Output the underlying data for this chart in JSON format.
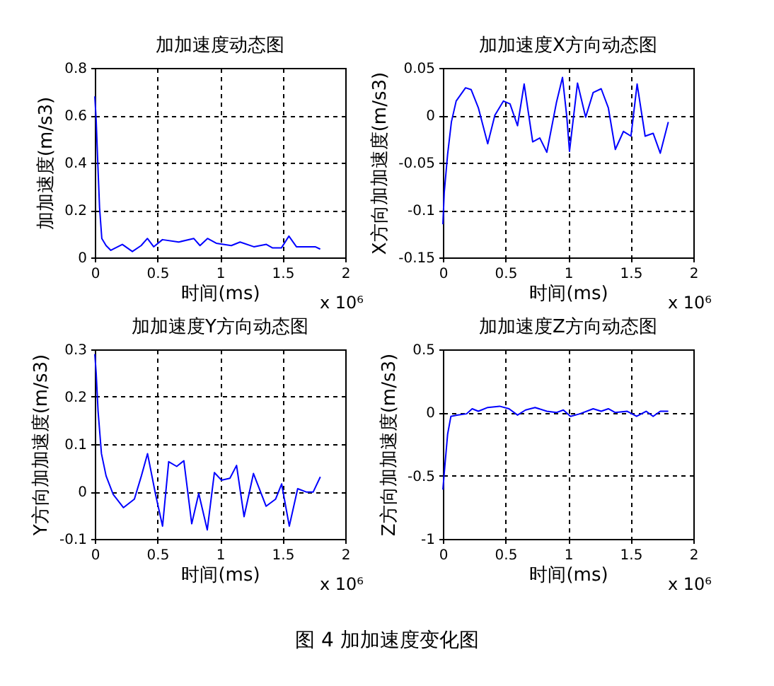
{
  "chart_data": [
    {
      "type": "line",
      "title": "加加速度动态图",
      "xlabel": "时间(ms)",
      "ylabel": "加加速度(m/s3)",
      "xlim": [
        0,
        2
      ],
      "xticks": [
        0,
        0.5,
        1,
        1.5,
        2
      ],
      "ylim": [
        0,
        0.8
      ],
      "yticks": [
        0,
        0.2,
        0.4,
        0.6,
        0.8
      ],
      "grid": true,
      "marker": "none",
      "line_style": "solid",
      "annotations": [
        "x 10⁶"
      ],
      "series": [
        {
          "color": "#0000ff",
          "x": [
            0,
            0.011,
            0.023,
            0.038,
            0.056,
            0.09,
            0.128,
            0.22,
            0.3,
            0.37,
            0.42,
            0.47,
            0.54,
            0.67,
            0.79,
            0.84,
            0.9,
            0.97,
            1.09,
            1.16,
            1.27,
            1.37,
            1.42,
            1.49,
            1.55,
            1.61,
            1.76,
            1.8
          ],
          "values": [
            0.68,
            0.58,
            0.41,
            0.21,
            0.08,
            0.05,
            0.03,
            0.055,
            0.025,
            0.05,
            0.08,
            0.045,
            0.075,
            0.065,
            0.08,
            0.05,
            0.08,
            0.06,
            0.05,
            0.065,
            0.045,
            0.055,
            0.04,
            0.04,
            0.09,
            0.045,
            0.045,
            0.035
          ]
        }
      ]
    },
    {
      "type": "line",
      "title": "加加速度X方向动态图",
      "xlabel": "时间(ms)",
      "ylabel": "X方向加加速度(m/s3)",
      "xlim": [
        0,
        2
      ],
      "xticks": [
        0,
        0.5,
        1,
        1.5,
        2
      ],
      "ylim": [
        -0.15,
        0.05
      ],
      "yticks": [
        -0.15,
        -0.1,
        -0.05,
        0,
        0.05
      ],
      "grid": true,
      "marker": "none",
      "line_style": "solid",
      "annotations": [
        "x 10⁶"
      ],
      "series": [
        {
          "color": "#0000ff",
          "x": [
            0,
            0.011,
            0.038,
            0.068,
            0.106,
            0.181,
            0.226,
            0.283,
            0.358,
            0.415,
            0.483,
            0.536,
            0.596,
            0.649,
            0.717,
            0.774,
            0.83,
            0.906,
            0.955,
            0.989,
            1.011,
            1.075,
            1.14,
            1.2,
            1.264,
            1.321,
            1.377,
            1.442,
            1.502,
            1.551,
            1.615,
            1.679,
            1.736,
            1.8
          ],
          "values": [
            -0.115,
            -0.081,
            -0.041,
            -0.007,
            0.015,
            0.029,
            0.027,
            0.008,
            -0.03,
            0,
            0.015,
            0.012,
            -0.011,
            0.033,
            -0.028,
            -0.024,
            -0.039,
            0.013,
            0.04,
            -0.001,
            -0.038,
            0.034,
            -0.002,
            0.024,
            0.028,
            0.008,
            -0.036,
            -0.017,
            -0.022,
            0.033,
            -0.022,
            -0.019,
            -0.04,
            -0.007
          ]
        }
      ]
    },
    {
      "type": "line",
      "title": "加加速度Y方向动态图",
      "xlabel": "时间(ms)",
      "ylabel": "Y方向加加速度(m/s3)",
      "xlim": [
        0,
        2
      ],
      "xticks": [
        0,
        0.5,
        1,
        1.5,
        2
      ],
      "ylim": [
        -0.1,
        0.3
      ],
      "yticks": [
        -0.1,
        0,
        0.1,
        0.2,
        0.3
      ],
      "grid": true,
      "marker": "none",
      "line_style": "solid",
      "annotations": [
        "x 10⁶"
      ],
      "series": [
        {
          "color": "#0000ff",
          "x": [
            0,
            0.011,
            0.026,
            0.053,
            0.09,
            0.147,
            0.229,
            0.316,
            0.372,
            0.421,
            0.485,
            0.541,
            0.59,
            0.654,
            0.711,
            0.774,
            0.83,
            0.898,
            0.955,
            1.011,
            1.079,
            1.132,
            1.192,
            1.267,
            1.368,
            1.444,
            1.492,
            1.553,
            1.62,
            1.688,
            1.744,
            1.801
          ],
          "values": [
            0.29,
            0.25,
            0.17,
            0.08,
            0.033,
            -0.006,
            -0.034,
            -0.016,
            0.033,
            0.08,
            -0.006,
            -0.073,
            0.063,
            0.053,
            0.065,
            -0.068,
            -0.004,
            -0.081,
            0.04,
            0.024,
            0.028,
            0.055,
            -0.053,
            0.038,
            -0.031,
            -0.016,
            0.016,
            -0.073,
            0.006,
            -0.001,
            -0.001,
            0.031
          ]
        }
      ]
    },
    {
      "type": "line",
      "title": "加加速度Z方向动态图",
      "xlabel": "时间(ms)",
      "ylabel": "Z方向加加速度(m/s3)",
      "xlim": [
        0,
        2
      ],
      "xticks": [
        0,
        0.5,
        1,
        1.5,
        2
      ],
      "ylim": [
        -1,
        0.5
      ],
      "yticks": [
        -1,
        -0.5,
        0,
        0.5
      ],
      "grid": true,
      "marker": "none",
      "line_style": "solid",
      "annotations": [
        "x 10⁶",
        "图 4  加加速度变化图"
      ],
      "series": [
        {
          "color": "#0000ff",
          "x": [
            0,
            0.015,
            0.038,
            0.064,
            0.113,
            0.189,
            0.234,
            0.283,
            0.358,
            0.453,
            0.528,
            0.596,
            0.66,
            0.736,
            0.83,
            0.906,
            0.962,
            1.019,
            1.094,
            1.2,
            1.264,
            1.321,
            1.377,
            1.472,
            1.547,
            1.623,
            1.679,
            1.736,
            1.8
          ],
          "values": [
            -0.61,
            -0.43,
            -0.17,
            -0.03,
            -0.02,
            -0.01,
            0.03,
            0.01,
            0.04,
            0.05,
            0.03,
            -0.02,
            0.02,
            0.04,
            0.01,
            0,
            0.02,
            -0.03,
            -0.01,
            0.03,
            0.01,
            0.03,
            0,
            0.01,
            -0.03,
            0.01,
            -0.03,
            0.01,
            0.01
          ]
        }
      ]
    }
  ]
}
